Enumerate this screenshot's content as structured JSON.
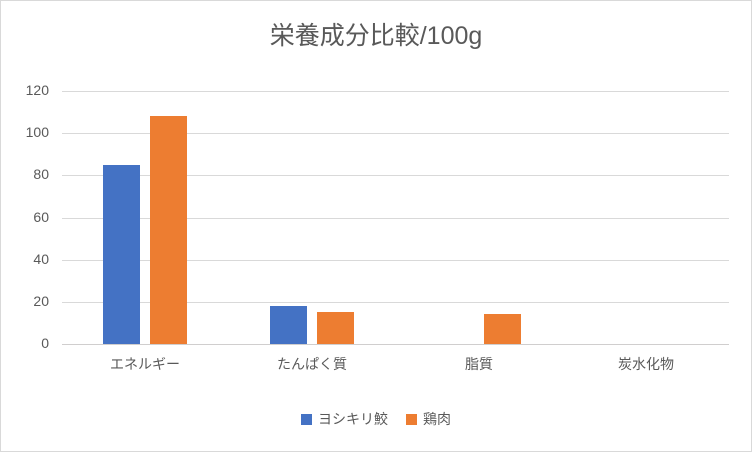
{
  "chart_data": {
    "type": "bar",
    "title": "栄養成分比較/100g",
    "categories": [
      "エネルギー",
      "たんぱく質",
      "脂質",
      "炭水化物"
    ],
    "series": [
      {
        "name": "ヨシキリ鮫",
        "color": "#4472C4",
        "values": [
          85,
          18,
          0,
          0
        ]
      },
      {
        "name": "鶏肉",
        "color": "#ED7D31",
        "values": [
          108,
          15,
          14,
          0
        ]
      }
    ],
    "ylim": [
      0,
      120
    ],
    "yticks": [
      0,
      20,
      40,
      60,
      80,
      100,
      120
    ],
    "grid": true,
    "legend_position": "bottom",
    "colors": {
      "text": "#595959",
      "gridline": "#D9D9D9",
      "axis_line": "#D0CECE",
      "background": "#FFFFFF",
      "border": "#D9D9D9"
    }
  }
}
